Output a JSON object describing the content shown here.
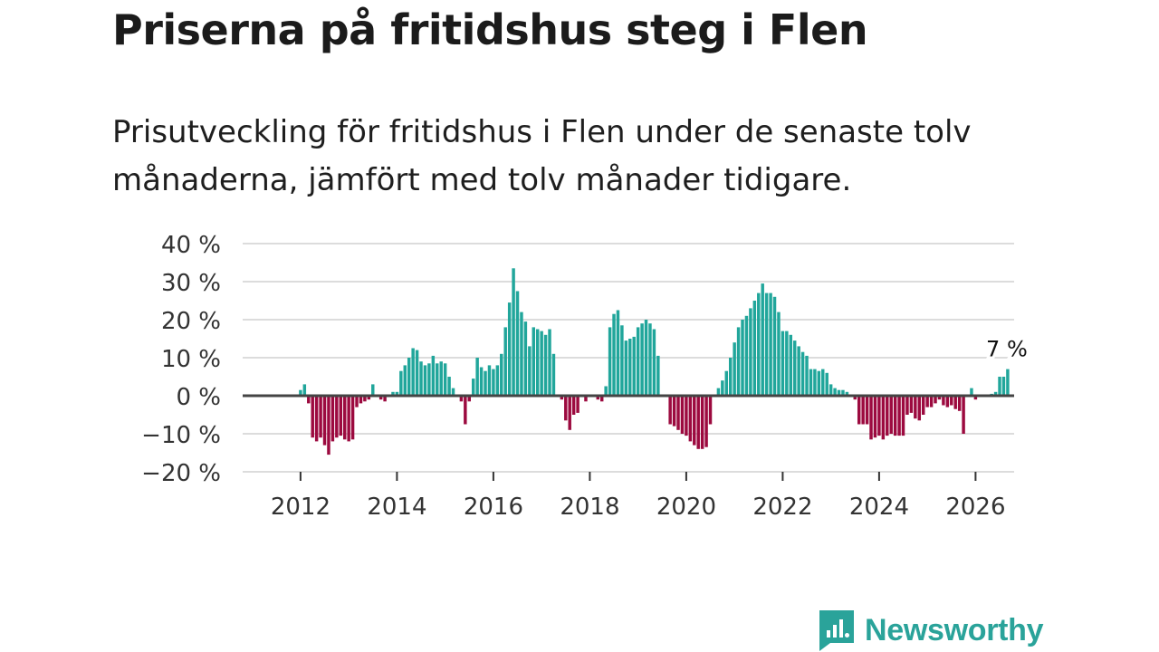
{
  "header": {
    "title": "Priserna på fritidshus steg i Flen",
    "subtitle": "Prisutveckling för fritidshus i Flen under de senaste tolv månaderna, jämfört med tolv månader tidigare."
  },
  "brand": {
    "name": "Newsworthy",
    "icon": "newsworthy-logo-icon"
  },
  "colors": {
    "positive": "#21a69b",
    "negative": "#9c0a3f",
    "grid": "#dcdcdc",
    "zero_line": "#444444",
    "text": "#333333"
  },
  "chart_data": {
    "type": "bar",
    "title": "Priserna på fritidshus steg i Flen",
    "xlabel": "",
    "ylabel": "",
    "ylim": [
      -20,
      40
    ],
    "y_ticks": [
      40,
      30,
      20,
      10,
      0,
      -10,
      -20
    ],
    "y_tick_labels": [
      "40 %",
      "30 %",
      "20 %",
      "10 %",
      "0 %",
      "−10 %",
      "−20 %"
    ],
    "x_ticks": [
      2012,
      2014,
      2016,
      2018,
      2020,
      2022,
      2024,
      2026
    ],
    "x_tick_labels": [
      "2012",
      "2014",
      "2016",
      "2018",
      "2020",
      "2022",
      "2024",
      "2026"
    ],
    "x_range": [
      2010.8,
      2026.8
    ],
    "grid": true,
    "start": {
      "year": 2012,
      "month": 1
    },
    "period": "monthly",
    "last_value_label": "7 %",
    "values": [
      1.5,
      3,
      -2,
      -11,
      -12,
      -11,
      -13,
      -15.5,
      -12,
      -11,
      -10.5,
      -11.5,
      -12,
      -11.5,
      -3,
      -2,
      -1.5,
      -1,
      3,
      0,
      -1,
      -1.5,
      0,
      1,
      1,
      6.5,
      8,
      10,
      12.5,
      12,
      9,
      8,
      8.5,
      10.5,
      8.5,
      9,
      8.5,
      5,
      2,
      0,
      -1.5,
      -7.5,
      -1.5,
      4.5,
      10,
      7.5,
      6.5,
      8,
      7,
      8,
      11,
      18,
      24.5,
      33.5,
      27.5,
      22,
      19.5,
      13,
      18,
      17.5,
      17,
      16,
      17.5,
      11,
      0,
      -1,
      -6.5,
      -9,
      -5,
      -4.5,
      0,
      -1.5,
      0,
      0,
      -1,
      -1.5,
      2.5,
      18,
      21.5,
      22.5,
      18.5,
      14.5,
      15,
      15.5,
      18,
      19,
      20,
      19,
      17.5,
      10.5,
      0,
      0,
      -7.5,
      -8,
      -9,
      -10,
      -10.5,
      -12,
      -13,
      -14,
      -14,
      -13.5,
      -7.5,
      0,
      2,
      4,
      6.5,
      10,
      14,
      18,
      20,
      21,
      23,
      25,
      27,
      29.5,
      27,
      27,
      26,
      22,
      17,
      17,
      16,
      14.5,
      13,
      11.5,
      10.5,
      7,
      7,
      6.5,
      7,
      6,
      3,
      2,
      1.5,
      1.5,
      1,
      0,
      -1,
      -7.5,
      -7.5,
      -7.5,
      -11.5,
      -11,
      -10.5,
      -11.5,
      -10.5,
      -10,
      -10.5,
      -10.5,
      -10.5,
      -5,
      -4.5,
      -6,
      -6.5,
      -5,
      -3,
      -3,
      -2,
      -1,
      -2.5,
      -3,
      -2.5,
      -3.5,
      -4,
      -10,
      0,
      2,
      -1,
      0,
      0,
      0,
      0.5,
      1,
      5,
      5,
      7
    ]
  }
}
